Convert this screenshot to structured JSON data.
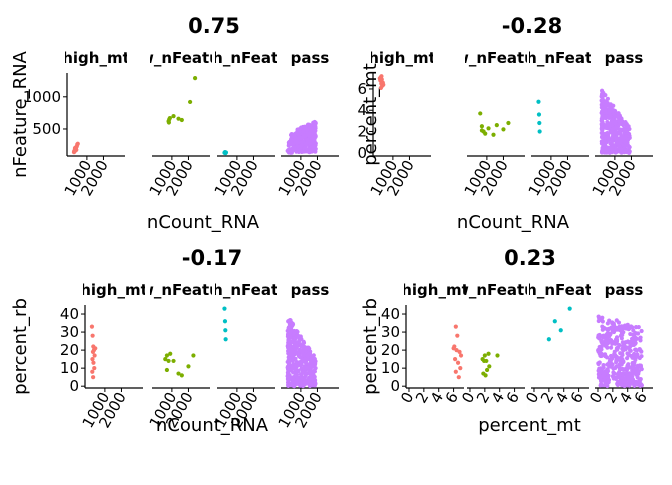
{
  "chart_data": [
    {
      "type": "scatter",
      "title": "0.75",
      "xlabel": "nCount_RNA",
      "ylabel": "nFeature_RNA",
      "facets": [
        "high_mt",
        "low_nFeature",
        "high_nFeature",
        "pass"
      ],
      "facet_labels": [
        "high_mt",
        "low_nFeature",
        "high_nFeature",
        "pass"
      ],
      "xticks": [
        1000,
        2000
      ],
      "yticks": [
        500,
        1000
      ],
      "xlim": [
        -200,
        3300
      ],
      "ylim": [
        80,
        1370
      ],
      "legend": "none",
      "grid": false,
      "series": [
        {
          "facet": "high_mt",
          "color": "#F8766D",
          "points": [
            [
              220,
              140
            ],
            [
              260,
              150
            ],
            [
              300,
              170
            ],
            [
              340,
              190
            ],
            [
              280,
              200
            ],
            [
              390,
              230
            ],
            [
              420,
              260
            ],
            [
              360,
              175
            ],
            [
              310,
              210
            ],
            [
              450,
              270
            ],
            [
              240,
              160
            ]
          ]
        },
        {
          "facet": "low_nFeature",
          "color": "#7CAE00",
          "points": [
            [
              800,
              620
            ],
            [
              840,
              650
            ],
            [
              880,
              670
            ],
            [
              1100,
              700
            ],
            [
              1400,
              660
            ],
            [
              1600,
              640
            ],
            [
              2100,
              920
            ],
            [
              2400,
              1290
            ],
            [
              820,
              600
            ]
          ]
        },
        {
          "facet": "high_nFeature",
          "color": "#00BFC4",
          "points": [
            [
              250,
              130
            ],
            [
              280,
              140
            ],
            [
              310,
              125
            ],
            [
              340,
              135
            ]
          ]
        },
        {
          "facet": "pass",
          "color": "#C77CFF",
          "cloud": {
            "n": 380,
            "xmin": 200,
            "xmax": 1900,
            "ymin": 130,
            "ymax": 620,
            "seed": 11,
            "shape": "fan"
          }
        }
      ]
    },
    {
      "type": "scatter",
      "title": "-0.28",
      "xlabel": "nCount_RNA",
      "ylabel": "percent_mt",
      "facets": [
        "high_mt",
        "low_nFeature",
        "high_nFeature",
        "pass"
      ],
      "facet_labels": [
        "high_mt",
        "low_nFeature",
        "high_nFeature",
        "pass"
      ],
      "xticks": [
        1000,
        2000
      ],
      "yticks": [
        0,
        2,
        4,
        6
      ],
      "xlim": [
        -200,
        3300
      ],
      "ylim": [
        -0.3,
        7.5
      ],
      "legend": "none",
      "grid": false,
      "series": [
        {
          "facet": "high_mt",
          "color": "#F8766D",
          "points": [
            [
              210,
              7.0
            ],
            [
              240,
              6.8
            ],
            [
              270,
              7.1
            ],
            [
              300,
              6.5
            ],
            [
              330,
              6.9
            ],
            [
              360,
              6.3
            ],
            [
              390,
              6.6
            ],
            [
              280,
              6.1
            ],
            [
              420,
              6.4
            ],
            [
              250,
              6.9
            ],
            [
              310,
              7.2
            ]
          ]
        },
        {
          "facet": "low_nFeature",
          "color": "#7CAE00",
          "points": [
            [
              600,
              3.7
            ],
            [
              700,
              2.5
            ],
            [
              800,
              2.0
            ],
            [
              900,
              1.8
            ],
            [
              1100,
              2.3
            ],
            [
              1400,
              1.7
            ],
            [
              1600,
              2.6
            ],
            [
              2000,
              2.2
            ],
            [
              2300,
              2.8
            ],
            [
              700,
              2.1
            ]
          ]
        },
        {
          "facet": "high_nFeature",
          "color": "#00BFC4",
          "points": [
            [
              250,
              4.8
            ],
            [
              280,
              3.6
            ],
            [
              300,
              2.8
            ],
            [
              320,
              2.0
            ]
          ]
        },
        {
          "facet": "pass",
          "color": "#C77CFF",
          "cloud": {
            "n": 380,
            "xmin": 200,
            "xmax": 1900,
            "ymin": 0.0,
            "ymax": 5.9,
            "seed": 23,
            "shape": "decay"
          }
        }
      ]
    },
    {
      "type": "scatter",
      "title": "-0.17",
      "xlabel": "nCount_RNA",
      "ylabel": "percent_rb",
      "facets": [
        "high_mt",
        "low_nFeature",
        "high_nFeature",
        "pass"
      ],
      "facet_labels": [
        "high_mt",
        "low_nFeature",
        "high_nFeature",
        "pass"
      ],
      "xticks": [
        1000,
        2000
      ],
      "yticks": [
        0,
        10,
        20,
        30,
        40
      ],
      "xlim": [
        -200,
        3300
      ],
      "ylim": [
        -1,
        45
      ],
      "legend": "none",
      "grid": false,
      "series": [
        {
          "facet": "high_mt",
          "color": "#F8766D",
          "points": [
            [
              220,
              33
            ],
            [
              260,
              28
            ],
            [
              300,
              22
            ],
            [
              280,
              19
            ],
            [
              340,
              20
            ],
            [
              380,
              17
            ],
            [
              250,
              15
            ],
            [
              310,
              13
            ],
            [
              360,
              10
            ],
            [
              240,
              8
            ],
            [
              290,
              5
            ],
            [
              420,
              21
            ]
          ]
        },
        {
          "facet": "low_nFeature",
          "color": "#7CAE00",
          "points": [
            [
              600,
              15
            ],
            [
              700,
              17
            ],
            [
              800,
              14
            ],
            [
              900,
              18
            ],
            [
              1100,
              14
            ],
            [
              1400,
              7
            ],
            [
              1600,
              6
            ],
            [
              2000,
              11
            ],
            [
              2300,
              17
            ],
            [
              700,
              9
            ]
          ]
        },
        {
          "facet": "high_nFeature",
          "color": "#00BFC4",
          "points": [
            [
              250,
              43
            ],
            [
              280,
              36
            ],
            [
              300,
              31
            ],
            [
              320,
              26
            ]
          ]
        },
        {
          "facet": "pass",
          "color": "#C77CFF",
          "cloud": {
            "n": 380,
            "xmin": 200,
            "xmax": 1900,
            "ymin": 0,
            "ymax": 39,
            "seed": 37,
            "shape": "decay"
          }
        }
      ]
    },
    {
      "type": "scatter",
      "title": "0.23",
      "xlabel": "percent_mt",
      "ylabel": "percent_rb",
      "facets": [
        "high_mt",
        "low_nFeature",
        "high_nFeature",
        "pass"
      ],
      "facet_labels": [
        "high_mt",
        "low_nFeature",
        "high_nFeature",
        "pass"
      ],
      "xticks": [
        0,
        2,
        4,
        6
      ],
      "yticks": [
        0,
        10,
        20,
        30,
        40
      ],
      "xlim": [
        -0.4,
        7.4
      ],
      "ylim": [
        -1,
        45
      ],
      "legend": "none",
      "grid": false,
      "series": [
        {
          "facet": "high_mt",
          "color": "#F8766D",
          "points": [
            [
              6.3,
              33
            ],
            [
              6.5,
              28
            ],
            [
              6.1,
              22
            ],
            [
              6.8,
              19
            ],
            [
              6.4,
              20
            ],
            [
              7.0,
              17
            ],
            [
              6.2,
              15
            ],
            [
              6.6,
              13
            ],
            [
              6.9,
              10
            ],
            [
              6.3,
              8
            ],
            [
              6.7,
              5
            ],
            [
              6.0,
              21
            ]
          ]
        },
        {
          "facet": "low_nFeature",
          "color": "#7CAE00",
          "points": [
            [
              1.7,
              15
            ],
            [
              2.0,
              17
            ],
            [
              1.9,
              14
            ],
            [
              2.5,
              18
            ],
            [
              2.2,
              14
            ],
            [
              1.8,
              7
            ],
            [
              2.1,
              6
            ],
            [
              2.6,
              11
            ],
            [
              3.7,
              17
            ],
            [
              2.3,
              9
            ]
          ]
        },
        {
          "facet": "high_nFeature",
          "color": "#00BFC4",
          "points": [
            [
              2.0,
              26
            ],
            [
              2.8,
              36
            ],
            [
              3.6,
              31
            ],
            [
              4.8,
              43
            ]
          ]
        },
        {
          "facet": "pass",
          "color": "#C77CFF",
          "cloud": {
            "n": 420,
            "xmin": 0.0,
            "xmax": 5.9,
            "ymin": 0,
            "ymax": 39,
            "seed": 53,
            "shape": "box"
          }
        }
      ]
    }
  ]
}
